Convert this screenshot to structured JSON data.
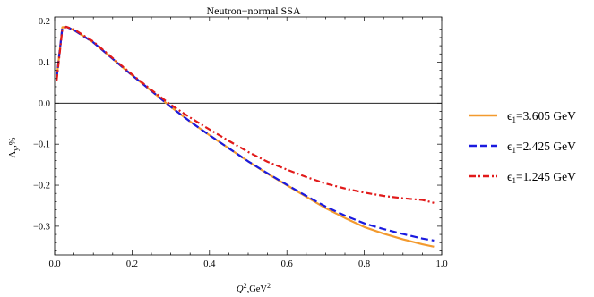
{
  "chart_data": {
    "type": "line",
    "title": "Neutron−normal SSA",
    "xlabel_base": "Q",
    "xlabel_sup1": "2",
    "xlabel_mid": ",GeV",
    "xlabel_sup2": "2",
    "ylabel_base": "A",
    "ylabel_sub": "y",
    "ylabel_tail": ",%",
    "xlim": [
      0,
      1.0
    ],
    "ylim": [
      -0.37,
      0.21
    ],
    "x_ticks": [
      0.0,
      0.2,
      0.4,
      0.6,
      0.8,
      1.0
    ],
    "x_tick_labels": [
      "0.0",
      "0.2",
      "0.4",
      "0.6",
      "0.8",
      "1.0"
    ],
    "y_ticks": [
      0.2,
      0.1,
      0.0,
      -0.1,
      -0.2,
      -0.3
    ],
    "y_tick_labels": [
      "0.2",
      "0.1",
      "0.0",
      "−0.1",
      "−0.2",
      "−0.3"
    ],
    "zero_line": true,
    "grid": false,
    "legend_position": "right",
    "series": [
      {
        "name_prefix": "ϵ",
        "name_sub": "1",
        "name_rest": "=3.605 GeV",
        "color": "#f39a2e",
        "dash": "solid",
        "x": [
          0.005,
          0.02,
          0.03,
          0.05,
          0.1,
          0.15,
          0.2,
          0.25,
          0.3,
          0.35,
          0.4,
          0.45,
          0.5,
          0.55,
          0.6,
          0.65,
          0.7,
          0.75,
          0.8,
          0.85,
          0.9,
          0.95,
          0.98
        ],
        "y": [
          0.06,
          0.185,
          0.186,
          0.178,
          0.148,
          0.108,
          0.068,
          0.03,
          -0.009,
          -0.045,
          -0.078,
          -0.11,
          -0.142,
          -0.172,
          -0.2,
          -0.228,
          -0.256,
          -0.28,
          -0.302,
          -0.318,
          -0.332,
          -0.344,
          -0.35
        ]
      },
      {
        "name_prefix": "ϵ",
        "name_sub": "1",
        "name_rest": "=2.425 GeV",
        "color": "#1a1adf",
        "dash": "8,4",
        "x": [
          0.005,
          0.02,
          0.03,
          0.05,
          0.1,
          0.15,
          0.2,
          0.25,
          0.3,
          0.35,
          0.4,
          0.45,
          0.5,
          0.55,
          0.6,
          0.65,
          0.7,
          0.75,
          0.8,
          0.85,
          0.9,
          0.95,
          0.98
        ],
        "y": [
          0.06,
          0.185,
          0.186,
          0.178,
          0.148,
          0.108,
          0.068,
          0.03,
          -0.009,
          -0.045,
          -0.078,
          -0.11,
          -0.142,
          -0.171,
          -0.199,
          -0.226,
          -0.252,
          -0.274,
          -0.293,
          -0.307,
          -0.319,
          -0.33,
          -0.335
        ]
      },
      {
        "name_prefix": "ϵ",
        "name_sub": "1",
        "name_rest": "=1.245 GeV",
        "color": "#e11a1a",
        "dash": "7,3,2,3",
        "x": [
          0.005,
          0.02,
          0.03,
          0.05,
          0.1,
          0.15,
          0.2,
          0.25,
          0.3,
          0.35,
          0.4,
          0.45,
          0.5,
          0.55,
          0.6,
          0.65,
          0.7,
          0.75,
          0.8,
          0.85,
          0.9,
          0.95,
          0.98
        ],
        "y": [
          0.055,
          0.18,
          0.186,
          0.18,
          0.15,
          0.11,
          0.07,
          0.032,
          -0.004,
          -0.035,
          -0.064,
          -0.092,
          -0.119,
          -0.143,
          -0.162,
          -0.18,
          -0.196,
          -0.208,
          -0.218,
          -0.226,
          -0.232,
          -0.236,
          -0.243
        ]
      }
    ]
  }
}
